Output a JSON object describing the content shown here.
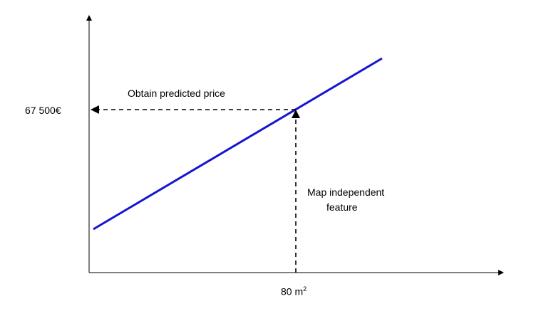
{
  "y_value_label": "67 500€",
  "x_value_label": {
    "base": "80 m",
    "superscript": "2"
  },
  "annotations": {
    "obtain": "Obtain predicted price",
    "map_line1": "Map independent",
    "map_line2": "feature"
  },
  "colors": {
    "regression_line": "#1515cf",
    "axes": "#000000",
    "guides": "#000000"
  }
}
